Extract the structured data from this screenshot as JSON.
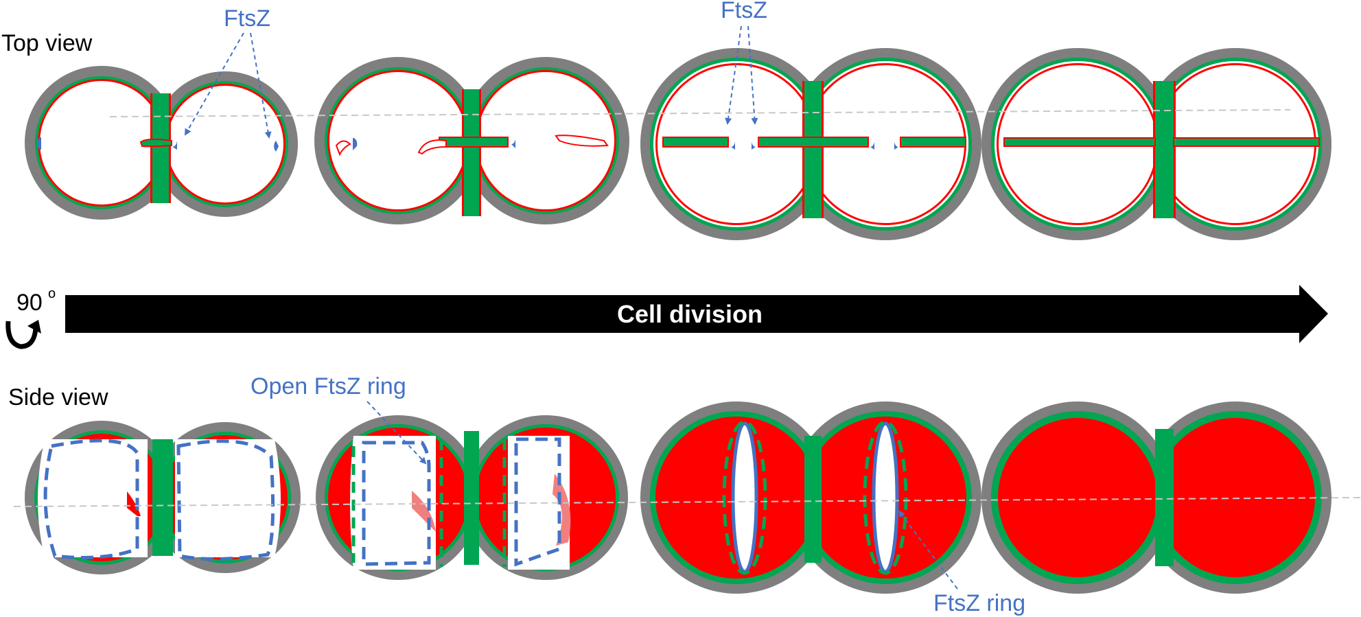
{
  "labels": {
    "top_view": "Top view",
    "side_view": "Side view",
    "rotation": "90",
    "rotation_degree": "o",
    "cell_division": "Cell division",
    "ftsz_left": "FtsZ",
    "ftsz_center": "FtsZ",
    "open_ftsz_ring": "Open FtsZ ring",
    "ftsz_ring": "FtsZ ring"
  },
  "colors": {
    "wall_outer": "#7f7f7f",
    "cell_wall_green": "#00a651",
    "membrane_red": "#ff0000",
    "ftsz_blue": "#4472C4",
    "guide_dashed": "#c8c8c8",
    "arrow_black": "#000000"
  },
  "icons": {
    "rotation": "rotate-arrow-icon"
  }
}
